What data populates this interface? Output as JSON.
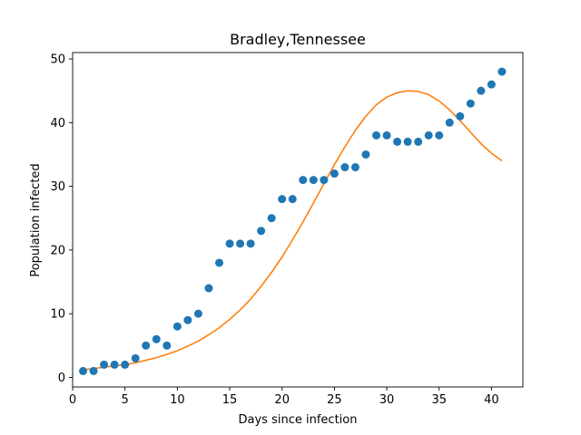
{
  "chart_data": {
    "type": "scatter",
    "title": "Bradley,Tennessee",
    "xlabel": "Days since infection",
    "ylabel": "Population infected",
    "xlim": [
      0,
      43
    ],
    "ylim": [
      -1.5,
      51
    ],
    "xticks": [
      0,
      5,
      10,
      15,
      20,
      25,
      30,
      35,
      40
    ],
    "yticks": [
      0,
      10,
      20,
      30,
      40,
      50
    ],
    "grid": false,
    "series": [
      {
        "kind": "scatter",
        "color": "#1f77b4",
        "x": [
          1,
          2,
          3,
          4,
          5,
          6,
          7,
          8,
          9,
          10,
          11,
          12,
          13,
          14,
          15,
          16,
          17,
          18,
          19,
          20,
          21,
          22,
          23,
          24,
          25,
          26,
          27,
          28,
          29,
          30,
          31,
          32,
          33,
          34,
          35,
          36,
          37,
          38,
          39,
          40,
          41
        ],
        "y": [
          1,
          1,
          2,
          2,
          2,
          3,
          5,
          6,
          5,
          8,
          9,
          10,
          14,
          18,
          21,
          21,
          21,
          23,
          25,
          28,
          28,
          31,
          31,
          31,
          32,
          33,
          33,
          35,
          38,
          38,
          37,
          37,
          37,
          38,
          38,
          40,
          41,
          43,
          45,
          46,
          48
        ]
      },
      {
        "kind": "line",
        "color": "#ff7f0e",
        "x": [
          1,
          2,
          3,
          4,
          5,
          6,
          7,
          8,
          9,
          10,
          11,
          12,
          13,
          14,
          15,
          16,
          17,
          18,
          19,
          20,
          21,
          22,
          23,
          24,
          25,
          26,
          27,
          28,
          29,
          30,
          31,
          32,
          33,
          34,
          35,
          36,
          37,
          38,
          39,
          40,
          41
        ],
        "y": [
          1.2,
          1.4,
          1.6,
          1.8,
          2.0,
          2.3,
          2.7,
          3.1,
          3.6,
          4.2,
          4.9,
          5.7,
          6.7,
          7.8,
          9.1,
          10.6,
          12.3,
          14.3,
          16.5,
          18.9,
          21.6,
          24.4,
          27.4,
          30.4,
          33.4,
          36.2,
          38.8,
          41.0,
          42.8,
          44.0,
          44.7,
          45.0,
          44.9,
          44.4,
          43.4,
          42.0,
          40.3,
          38.5,
          36.7,
          35.2,
          34.0
        ]
      }
    ]
  }
}
